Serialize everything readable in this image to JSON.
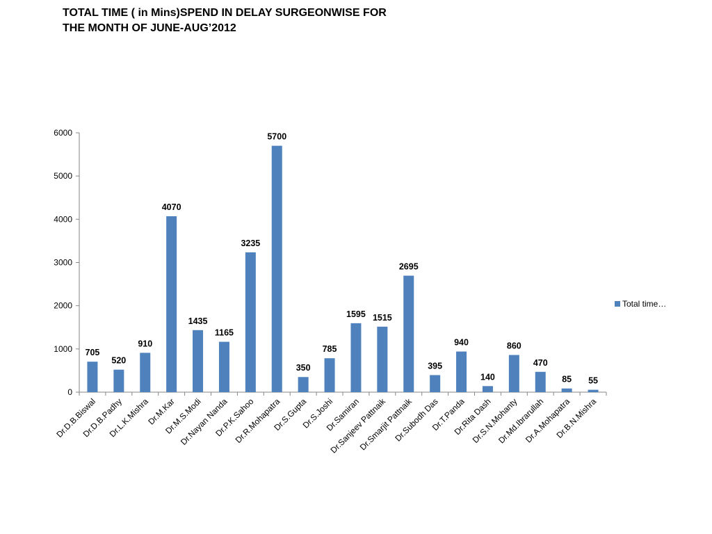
{
  "slide": {
    "title_line1": "TOTAL TIME ( in Mins)SPEND IN DELAY SURGEONWISE FOR",
    "title_line2": "THE MONTH OF JUNE-AUG’2012"
  },
  "colors": {
    "bar": "#4F81BD",
    "axis": "#868686"
  },
  "chart_data": {
    "type": "bar",
    "title": "",
    "xlabel": "",
    "ylabel": "",
    "ylim": [
      0,
      6000
    ],
    "yticks": [
      0,
      1000,
      2000,
      3000,
      4000,
      5000,
      6000
    ],
    "grid": false,
    "legend_position": "right",
    "categories": [
      "Dr.D.B.Biswal",
      "Dr.D.B.Padhy",
      "Dr.L.K.Mishra",
      "Dr.M.Kar",
      "Dr.M.S.Modi",
      "Dr.Nayan Nanda",
      "Dr.P.K.Sahoo",
      "Dr.R.Mohapatra",
      "Dr.S.Gupta",
      "Dr.S.Joshi",
      "Dr.Samiran",
      "Dr.Sanjeev Pattnaik",
      "Dr.Smarjit Pattnaik",
      "Dr.Subodh Das",
      "Dr.T.Panda",
      "Dr.Rita Dash",
      "Dr.S.N.Mohanty",
      "Dr.Md.Ibrarullah",
      "Dr.A.Mohapatra",
      "Dr.B.N.Mishra"
    ],
    "series": [
      {
        "name": "Total time…",
        "values": [
          705,
          520,
          910,
          4070,
          1435,
          1165,
          3235,
          5700,
          350,
          785,
          1595,
          1515,
          2695,
          395,
          940,
          140,
          860,
          470,
          85,
          55
        ]
      }
    ]
  }
}
